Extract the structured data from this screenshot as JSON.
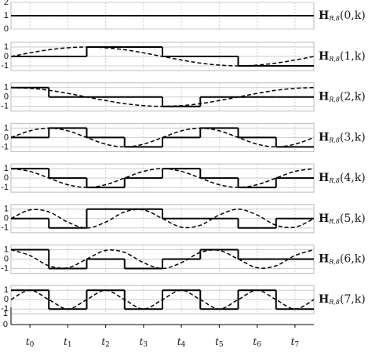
{
  "chart_data": {
    "type": "step",
    "xlim": [
      0,
      8
    ],
    "xticks": [
      {
        "value": 0.5,
        "label": "t0"
      },
      {
        "value": 1.5,
        "label": "t1"
      },
      {
        "value": 2.5,
        "label": "t2"
      },
      {
        "value": 3.5,
        "label": "t3"
      },
      {
        "value": 4.5,
        "label": "t4"
      },
      {
        "value": 5.5,
        "label": "t5"
      },
      {
        "value": 6.5,
        "label": "t6"
      },
      {
        "value": 7.5,
        "label": "t7"
      }
    ],
    "axis_ylim": [
      0,
      1
    ],
    "axis_yticks": [
      0,
      1
    ],
    "curve_x": [
      0,
      0.5,
      1,
      1.5,
      2,
      2.5,
      3,
      3.5,
      4,
      4.5,
      5,
      5.5,
      6,
      6.5,
      7,
      7.5,
      8
    ],
    "grid": true,
    "panels": [
      {
        "name": "HR,8(0,k)",
        "ylim": [
          0,
          2
        ],
        "yticks": [
          0,
          1,
          2
        ],
        "steps": [
          1,
          1,
          1,
          1,
          1,
          1,
          1,
          1
        ],
        "curve": null
      },
      {
        "name": "HR,8(1,k)",
        "ylim": [
          -1.5,
          1.5
        ],
        "yticks": [
          -1,
          0,
          1
        ],
        "steps": [
          0,
          0,
          1,
          1,
          0,
          0,
          -1,
          -1
        ],
        "curve": [
          0,
          0.38,
          0.71,
          0.92,
          1,
          0.92,
          0.71,
          0.38,
          0,
          -0.38,
          -0.71,
          -0.92,
          -1,
          -0.92,
          -0.71,
          -0.38,
          0
        ]
      },
      {
        "name": "HR,8(2,k)",
        "ylim": [
          -1.5,
          1.5
        ],
        "yticks": [
          -1,
          0,
          1
        ],
        "steps": [
          1,
          0,
          0,
          0,
          -1,
          0,
          0,
          0
        ],
        "curve": [
          1,
          0.92,
          0.71,
          0.38,
          0,
          -0.38,
          -0.71,
          -0.92,
          -1,
          -0.92,
          -0.71,
          -0.38,
          0,
          0.38,
          0.71,
          0.92,
          1
        ]
      },
      {
        "name": "HR,8(3,k)",
        "ylim": [
          -1.5,
          1.5
        ],
        "yticks": [
          -1,
          0,
          1
        ],
        "steps": [
          0,
          1,
          0,
          -1,
          0,
          1,
          0,
          -1
        ],
        "curve": [
          0,
          0.71,
          1,
          0.71,
          0,
          -0.71,
          -1,
          -0.71,
          0,
          0.71,
          1,
          0.71,
          0,
          -0.71,
          -1,
          -0.71,
          0
        ]
      },
      {
        "name": "HR,8(4,k)",
        "ylim": [
          -1.5,
          1.5
        ],
        "yticks": [
          -1,
          0,
          1
        ],
        "steps": [
          1,
          0,
          -1,
          0,
          1,
          0,
          -1,
          0
        ],
        "curve": [
          1,
          0.71,
          0,
          -0.71,
          -1,
          -0.71,
          0,
          0.71,
          1,
          0.71,
          0,
          -0.71,
          -1,
          -0.71,
          0,
          0.71,
          1
        ]
      },
      {
        "name": "HR,8(5,k)",
        "ylim": [
          -1.5,
          1.5
        ],
        "yticks": [
          -1,
          0,
          1
        ],
        "steps": [
          0,
          -1,
          1,
          1,
          0,
          0,
          -1,
          0
        ],
        "curve": [
          0,
          0.92,
          0.71,
          -0.38,
          -1,
          -0.38,
          0.71,
          0.92,
          0,
          -0.92,
          -0.71,
          0.38,
          1,
          0.38,
          -0.71,
          -0.92,
          0
        ]
      },
      {
        "name": "HR,8(6,k)",
        "ylim": [
          -1.5,
          1.5
        ],
        "yticks": [
          -1,
          0,
          1
        ],
        "steps": [
          1,
          -1,
          0,
          -1,
          0,
          1,
          0,
          0
        ],
        "curve": [
          1,
          0.38,
          -0.71,
          -0.92,
          0,
          0.92,
          0.71,
          -0.38,
          -1,
          -0.38,
          0.71,
          0.92,
          0,
          -0.92,
          -0.71,
          0.38,
          1
        ]
      },
      {
        "name": "HR,8(7,k)",
        "ylim": [
          -1.5,
          1.5
        ],
        "yticks": [
          -1,
          0,
          1
        ],
        "steps": [
          1,
          -1,
          1,
          -1,
          1,
          -1,
          1,
          -1
        ],
        "curve": [
          0,
          1,
          0,
          -1,
          0,
          1,
          0,
          -1,
          0,
          1,
          0,
          -1,
          0,
          1,
          0,
          -1,
          0
        ]
      }
    ]
  }
}
